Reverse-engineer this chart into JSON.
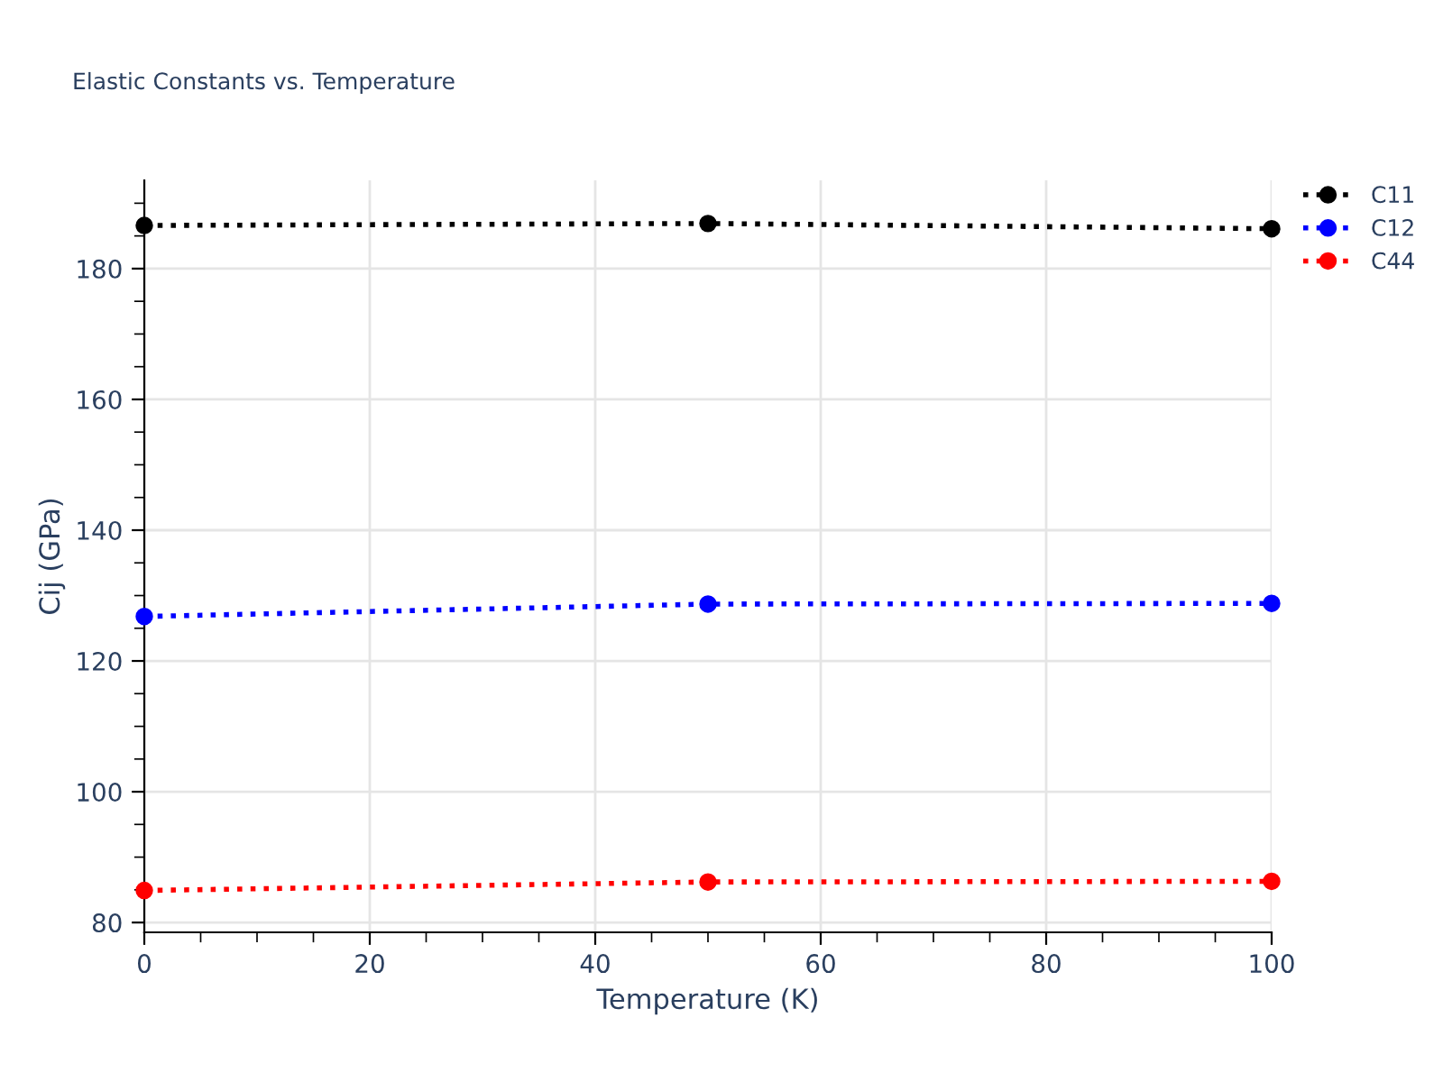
{
  "chart_data": {
    "type": "line",
    "title": "Elastic Constants vs. Temperature",
    "xlabel": "Temperature (K)",
    "ylabel": "Cij (GPa)",
    "x": [
      0,
      50,
      100
    ],
    "series": [
      {
        "name": "C11",
        "color": "#000000",
        "values": [
          186.6,
          186.9,
          186.1
        ]
      },
      {
        "name": "C12",
        "color": "#0000ff",
        "values": [
          126.8,
          128.7,
          128.8
        ]
      },
      {
        "name": "C44",
        "color": "#ff0000",
        "values": [
          84.9,
          86.2,
          86.3
        ]
      }
    ],
    "xlim": [
      0,
      100
    ],
    "xticks": [
      0,
      20,
      40,
      60,
      80,
      100
    ],
    "ylim": [
      78.5,
      193.5
    ],
    "yticks": [
      80,
      100,
      120,
      140,
      160,
      180
    ],
    "grid": true,
    "legend": "top right",
    "marker": "circle",
    "line_style": "dotted"
  }
}
